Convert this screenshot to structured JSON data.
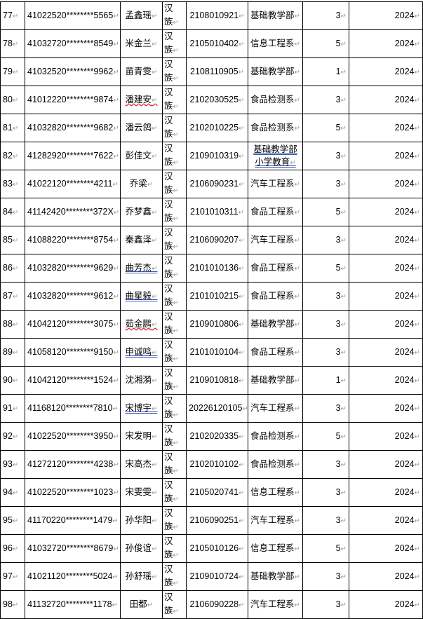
{
  "rows": [
    {
      "no": "77",
      "id": "41022520********5565",
      "name": "孟鑫瑶",
      "eth": [
        "汉",
        "族"
      ],
      "sid": "2108010921",
      "dept": "基础教学部",
      "count": "3",
      "year": "2024"
    },
    {
      "no": "78",
      "id": "41032720********8549",
      "name": "米金兰",
      "eth": [
        "汉",
        "族"
      ],
      "sid": "2105010402",
      "dept": "信息工程系",
      "count": "5",
      "year": "2024"
    },
    {
      "no": "79",
      "id": "41032520********9962",
      "name": "苗青雯",
      "eth": [
        "汉",
        "族"
      ],
      "sid": "2108110905",
      "dept": "基础教学部",
      "count": "1",
      "year": "2024"
    },
    {
      "no": "80",
      "id": "41012220********9874",
      "name": "潘建安",
      "eth": [
        "汉",
        "族"
      ],
      "sid": "2102030525",
      "dept": "食品检测系",
      "count": "3",
      "year": "2024"
    },
    {
      "no": "81",
      "id": "41032820********9682",
      "name": "潘云鸽",
      "eth": [
        "汉",
        "族"
      ],
      "sid": "2102010225",
      "dept": "食品检测系",
      "count": "5",
      "year": "2024"
    },
    {
      "no": "82",
      "id": "41282920********7622",
      "name": "彭佳文",
      "eth": [
        "汉",
        "族"
      ],
      "sid": "2109010319",
      "dept": "基础教学部",
      "dept2": "小学教育",
      "count": "3",
      "year": "2024"
    },
    {
      "no": "83",
      "id": "41022120********4211",
      "name": "乔梁",
      "eth": [
        "汉",
        "族"
      ],
      "sid": "2106090231",
      "dept": "汽车工程系",
      "count": "3",
      "year": "2024"
    },
    {
      "no": "84",
      "id": "41142420********372X",
      "name": "乔梦鑫",
      "eth": [
        "汉",
        "族"
      ],
      "sid": "2101010311",
      "dept": "食品工程系",
      "count": "5",
      "year": "2024"
    },
    {
      "no": "85",
      "id": "41088220********8754",
      "name": "秦鑫泽",
      "eth": [
        "汉",
        "族"
      ],
      "sid": "2106090207",
      "dept": "汽车工程系",
      "count": "3",
      "year": "2024"
    },
    {
      "no": "86",
      "id": "41032820********9629",
      "name": "曲芳杰",
      "eth": [
        "汉",
        "族"
      ],
      "sid": "2101010136",
      "dept": "食品工程系",
      "count": "5",
      "year": "2024"
    },
    {
      "no": "87",
      "id": "41032820********9612",
      "name": "曲星毅",
      "eth": [
        "汉",
        "族"
      ],
      "sid": "2101010215",
      "dept": "食品工程系",
      "count": "3",
      "year": "2024"
    },
    {
      "no": "88",
      "id": "41042120********3075",
      "name": "茹金鹏",
      "eth": [
        "汉",
        "族"
      ],
      "sid": "2109010806",
      "dept": "基础教学部",
      "count": "3",
      "year": "2024"
    },
    {
      "no": "89",
      "id": "41058120********9150",
      "name": "申诚鸣",
      "eth": [
        "汉",
        "族"
      ],
      "sid": "2101010104",
      "dept": "食品工程系",
      "count": "3",
      "year": "2024"
    },
    {
      "no": "90",
      "id": "41042120********1524",
      "name": "沈湘漪",
      "eth": [
        "汉",
        "族"
      ],
      "sid": "2109010818",
      "dept": "基础教学部",
      "count": "1",
      "year": "2024"
    },
    {
      "no": "91",
      "id": "41168120********7810",
      "name": "宋博宇",
      "eth": [
        "汉",
        "族"
      ],
      "sid": "20226120105",
      "dept": "汽车工程系",
      "count": "3",
      "year": "2024"
    },
    {
      "no": "92",
      "id": "41022520********3950",
      "name": "宋发明",
      "eth": [
        "汉",
        "族"
      ],
      "sid": "2102020335",
      "dept": "食品检测系",
      "count": "5",
      "year": "2024"
    },
    {
      "no": "93",
      "id": "41272120********4238",
      "name": "宋高杰",
      "eth": [
        "汉",
        "族"
      ],
      "sid": "2102010102",
      "dept": "食品检测系",
      "count": "3",
      "year": "2024"
    },
    {
      "no": "94",
      "id": "41022520********1023",
      "name": "宋雯雯",
      "eth": [
        "汉",
        "族"
      ],
      "sid": "2105020741",
      "dept": "信息工程系",
      "count": "3",
      "year": "2024"
    },
    {
      "no": "95",
      "id": "41170220********1479",
      "name": "孙华阳",
      "eth": [
        "汉",
        "族"
      ],
      "sid": "2106090251",
      "dept": "汽车工程系",
      "count": "3",
      "year": "2024"
    },
    {
      "no": "96",
      "id": "41032720********8679",
      "name": "孙俊谊",
      "eth": [
        "汉",
        "族"
      ],
      "sid": "2105010126",
      "dept": "信息工程系",
      "count": "5",
      "year": "2024"
    },
    {
      "no": "97",
      "id": "41021120********5024",
      "name": "孙舒瑶",
      "eth": [
        "汉",
        "族"
      ],
      "sid": "2109010724",
      "dept": "基础教学部",
      "count": "3",
      "year": "2024"
    },
    {
      "no": "98",
      "id": "41132720********1178",
      "name": "田都",
      "eth": [
        "汉",
        "族"
      ],
      "sid": "2106090228",
      "dept": "汽车工程系",
      "count": "3",
      "year": "2024"
    }
  ],
  "colors": {
    "border": "#000000",
    "spell_error": "#d03030",
    "grammar_mark": "#3355bb",
    "return_mark": "#999999"
  }
}
